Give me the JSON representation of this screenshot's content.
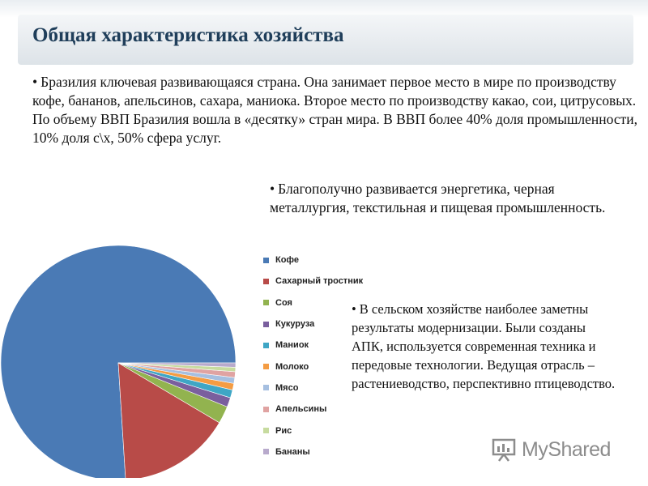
{
  "page": {
    "title": "Общая характеристика хозяйства"
  },
  "paragraphs": {
    "p1": "Бразилия ключевая развивающаяся страна. Она занимает первое место в мире по производству кофе, бананов, апельсинов, сахара, маниока. Второе место по производству какао, сои, цитрусовых. По объему ВВП Бразилия вошла в «десятку» стран мира. В ВВП более 40% доля промышленности, 10% доля с\\х, 50% сфера услуг.",
    "p2": "Благополучно развивается энергетика, черная металлургия, текстильная и пищевая промышленность.",
    "p3": "В сельском хозяйстве наиболее заметны результаты модернизации. Были созданы АПК, используется современная техника и передовые технологии. Ведущая отрасль – растениеводство, перспективно птицеводство."
  },
  "bullet_symbol": "•",
  "chart_data": {
    "type": "pie",
    "title": "",
    "legend_position": "right",
    "start_angle_deg": 0,
    "direction": "counterclockwise",
    "categories": [
      "Кофе",
      "Сахарный тростник",
      "Соя",
      "Кукуруза",
      "Маниок",
      "Молоко",
      "Мясо",
      "Апельсины",
      "Рис",
      "Бананы"
    ],
    "values": [
      76,
      15.5,
      2.4,
      1.3,
      1.1,
      0.9,
      0.8,
      0.8,
      0.6,
      0.6
    ],
    "colors": [
      "#4a7ab5",
      "#b84b48",
      "#92b34f",
      "#7a5f9e",
      "#3fa6c5",
      "#f49c43",
      "#a6bfe0",
      "#e0a3a2",
      "#c7db9f",
      "#b8aacc"
    ]
  },
  "watermark": {
    "text": "MyShared",
    "icon": "presentation-board-icon"
  }
}
